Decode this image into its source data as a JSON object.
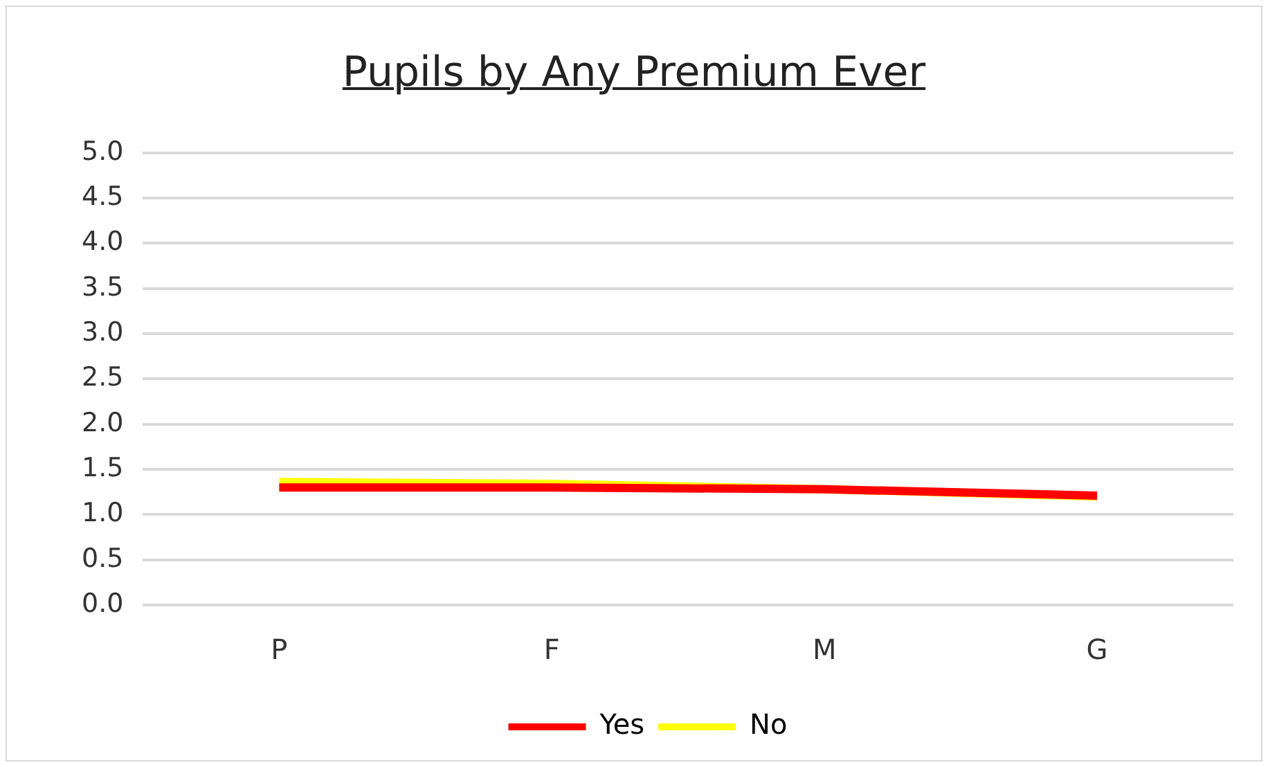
{
  "chart_data": {
    "type": "line",
    "title": "Pupils by Any Premium Ever",
    "categories": [
      "P",
      "F",
      "M",
      "G"
    ],
    "series": [
      {
        "name": "Yes",
        "color": "#ff0000",
        "values": [
          1.3,
          1.3,
          1.28,
          1.21
        ]
      },
      {
        "name": "No",
        "color": "#ffff00",
        "values": [
          1.36,
          1.34,
          1.28,
          1.2
        ]
      }
    ],
    "ylim": [
      0,
      5
    ],
    "yticks": [
      {
        "value": 0,
        "label": "0.0"
      },
      {
        "value": 0.5,
        "label": "0.5"
      },
      {
        "value": 1,
        "label": "1.0"
      },
      {
        "value": 1.5,
        "label": "1.5"
      },
      {
        "value": 2,
        "label": "2.0"
      },
      {
        "value": 2.5,
        "label": "2.5"
      },
      {
        "value": 3,
        "label": "3.0"
      },
      {
        "value": 3.5,
        "label": "3.5"
      },
      {
        "value": 4,
        "label": "4.0"
      },
      {
        "value": 4.5,
        "label": "4.5"
      },
      {
        "value": 5,
        "label": "5.0"
      }
    ],
    "grid": "y",
    "legend": "bottom",
    "marker": "none",
    "line_style": "solid"
  }
}
